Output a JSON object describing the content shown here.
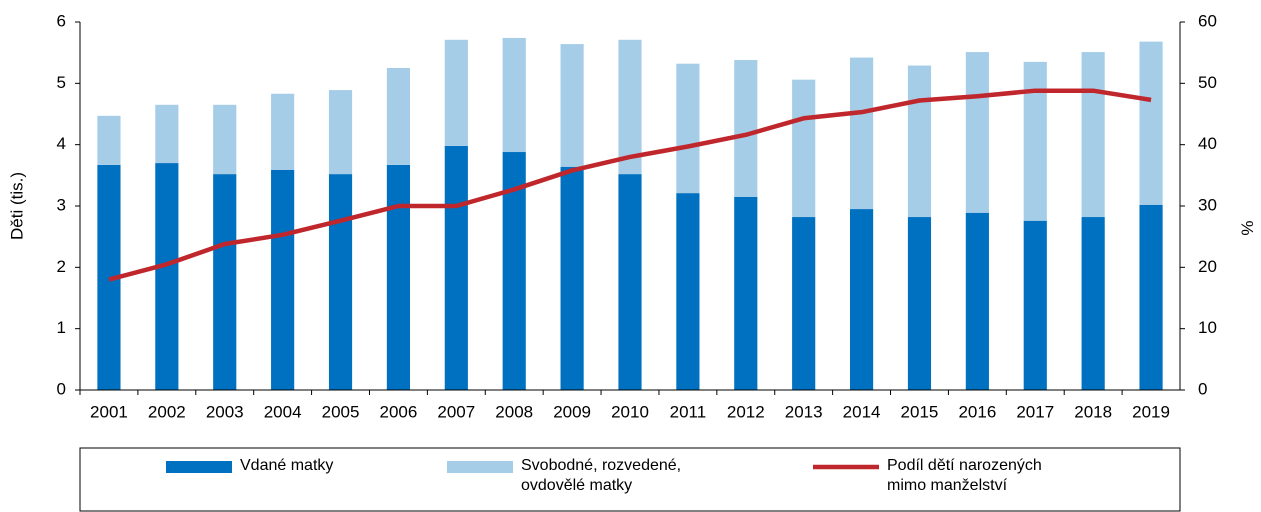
{
  "chart_data": {
    "type": "bar-line",
    "categories": [
      "2001",
      "2002",
      "2003",
      "2004",
      "2005",
      "2006",
      "2007",
      "2008",
      "2009",
      "2010",
      "2011",
      "2012",
      "2013",
      "2014",
      "2015",
      "2016",
      "2017",
      "2018",
      "2019"
    ],
    "ylabel": "Děti (tis.)",
    "y2label": "%",
    "ylim": [
      0,
      6
    ],
    "yticks": [
      0,
      1,
      2,
      3,
      4,
      5,
      6
    ],
    "y2lim": [
      0,
      60
    ],
    "y2ticks": [
      0,
      10,
      20,
      30,
      40,
      50,
      60
    ],
    "stacked": true,
    "series": [
      {
        "name": "Vdané matky",
        "color": "#0070c0",
        "kind": "bar",
        "values": [
          3.67,
          3.7,
          3.52,
          3.59,
          3.52,
          3.67,
          3.98,
          3.88,
          3.64,
          3.52,
          3.21,
          3.15,
          2.82,
          2.95,
          2.82,
          2.89,
          2.76,
          2.82,
          3.02
        ]
      },
      {
        "name": "Svobodné, rozvedené,\novdovělé matky",
        "color": "#a6cde8",
        "kind": "bar",
        "values": [
          0.8,
          0.95,
          1.13,
          1.24,
          1.37,
          1.58,
          1.73,
          1.86,
          2.0,
          2.19,
          2.11,
          2.23,
          2.24,
          2.47,
          2.47,
          2.62,
          2.59,
          2.69,
          2.66
        ]
      },
      {
        "name": "Podíl dětí narozených\nmimo manželství",
        "color": "#c0272d",
        "kind": "line",
        "axis": "y2",
        "values": [
          18.0,
          20.5,
          23.8,
          25.3,
          27.6,
          30.0,
          30.0,
          32.7,
          35.8,
          38.0,
          39.7,
          41.6,
          44.3,
          45.3,
          47.2,
          47.9,
          48.8,
          48.8,
          47.3
        ]
      }
    ]
  }
}
